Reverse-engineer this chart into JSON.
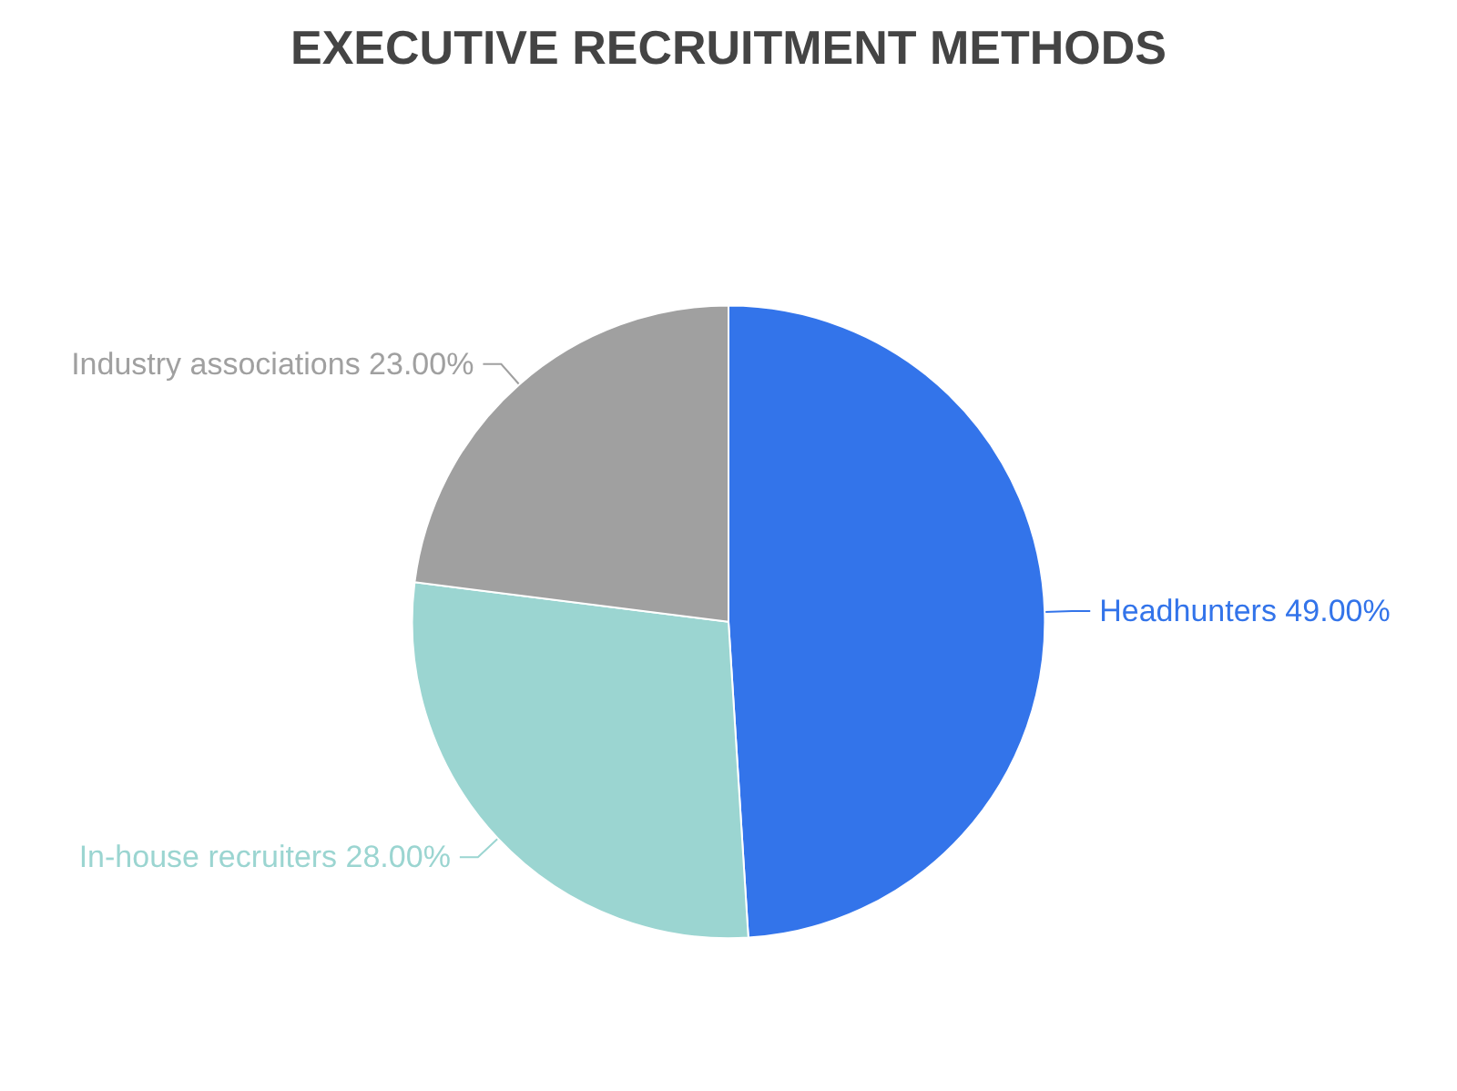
{
  "chart_data": {
    "type": "pie",
    "title": "EXECUTIVE RECRUITMENT METHODS",
    "categories": [
      "Headhunters",
      "In-house recruiters",
      "Industry associations"
    ],
    "values": [
      49,
      28,
      23
    ],
    "value_labels": [
      "49.00%",
      "28.00%",
      "23.00%"
    ],
    "colors": [
      "#3374ea",
      "#9bd5d1",
      "#a0a0a0"
    ],
    "legend": false
  }
}
